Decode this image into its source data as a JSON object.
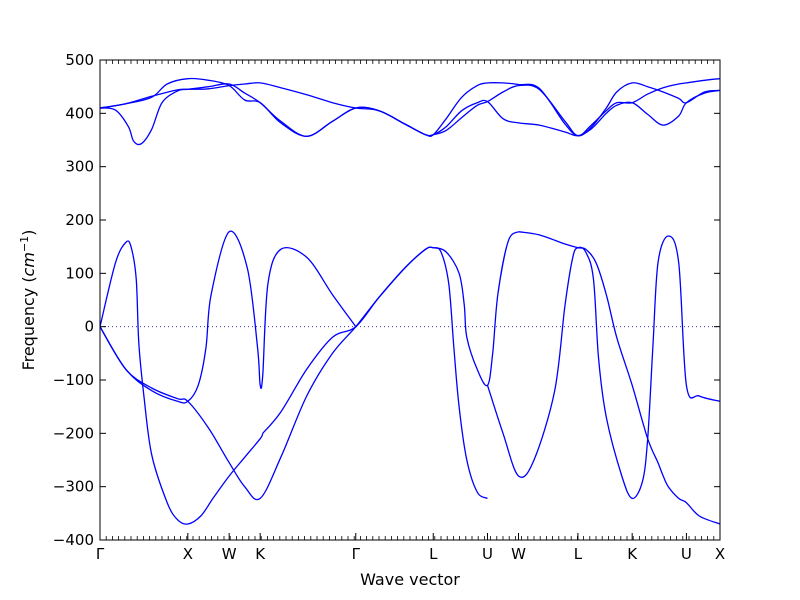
{
  "chart_data": {
    "type": "line",
    "title": "",
    "xlabel": "Wave vector",
    "ylabel_prefix": "Frequency (",
    "ylabel_unit_base": "cm",
    "ylabel_unit_exp": "−1",
    "ylabel_suffix": ")",
    "ylim": [
      -400,
      500
    ],
    "yticks": [
      -400,
      -300,
      -200,
      -100,
      0,
      100,
      200,
      300,
      400,
      500
    ],
    "xlim": [
      0,
      12
    ],
    "xticks": [
      {
        "x": 0,
        "label": "Γ"
      },
      {
        "x": 1.7,
        "label": "X"
      },
      {
        "x": 2.5,
        "label": "W"
      },
      {
        "x": 3.1,
        "label": "K"
      },
      {
        "x": 4.95,
        "label": "Γ"
      },
      {
        "x": 6.45,
        "label": "L"
      },
      {
        "x": 7.5,
        "label": "U"
      },
      {
        "x": 8.1,
        "label": "W"
      },
      {
        "x": 9.25,
        "label": "L"
      },
      {
        "x": 10.3,
        "label": "K"
      },
      {
        "x": 11.35,
        "label": "U"
      },
      {
        "x": 12,
        "label": "X"
      }
    ],
    "zero_line": true,
    "line_color": "#0000ff",
    "zero_line_color": "#3333aa",
    "series": [
      {
        "x": [
          0,
          0.3,
          0.55,
          0.65,
          0.8,
          1.0,
          1.2,
          1.5,
          1.7,
          2.1,
          2.5,
          2.8,
          3.1,
          3.5,
          4.0,
          4.5,
          4.95,
          5.4,
          5.9,
          6.3,
          6.45,
          6.7,
          7.0,
          7.3,
          7.5,
          7.8,
          8.1,
          8.5,
          9.0,
          9.25,
          9.5,
          9.8,
          10.0,
          10.3,
          10.6,
          10.9,
          11.2,
          11.35,
          11.7,
          12
        ],
        "y": [
          410,
          406,
          375,
          348,
          343,
          370,
          420,
          442,
          445,
          450,
          455,
          438,
          420,
          385,
          357,
          385,
          410,
          405,
          380,
          360,
          360,
          375,
          405,
          420,
          422,
          390,
          382,
          378,
          365,
          358,
          370,
          400,
          415,
          420,
          398,
          378,
          395,
          420,
          438,
          443
        ]
      },
      {
        "x": [
          0,
          0.5,
          1.0,
          1.5,
          1.7,
          2.1,
          2.5,
          2.8,
          3.1,
          3.5,
          4.0,
          4.5,
          4.95,
          5.4,
          5.9,
          6.3,
          6.45,
          6.7,
          7.0,
          7.3,
          7.5,
          7.8,
          8.1,
          8.5,
          9.0,
          9.25,
          9.5,
          9.8,
          10.0,
          10.3,
          10.6,
          10.9,
          11.2,
          11.35,
          11.7,
          12
        ],
        "y": [
          410,
          418,
          432,
          444,
          445,
          446,
          452,
          455,
          457,
          448,
          435,
          420,
          410,
          405,
          380,
          360,
          360,
          390,
          430,
          452,
          457,
          457,
          454,
          447,
          380,
          358,
          373,
          410,
          440,
          457,
          450,
          440,
          428,
          420,
          440,
          443
        ]
      },
      {
        "x": [
          0,
          0.5,
          1.0,
          1.3,
          1.7,
          2.1,
          2.5,
          2.8,
          3.1,
          3.5,
          4.0,
          4.5,
          4.95,
          5.4,
          5.9,
          6.3,
          6.45,
          6.7,
          7.0,
          7.3,
          7.5,
          7.8,
          8.1,
          8.5,
          9.0,
          9.25,
          9.5,
          9.8,
          10.0,
          10.3,
          10.6,
          10.9,
          11.2,
          11.35,
          11.7,
          12
        ],
        "y": [
          410,
          418,
          430,
          455,
          465,
          462,
          452,
          425,
          420,
          382,
          357,
          385,
          410,
          405,
          380,
          360,
          360,
          368,
          392,
          415,
          422,
          440,
          452,
          445,
          385,
          358,
          377,
          405,
          420,
          420,
          436,
          448,
          455,
          457,
          462,
          465
        ]
      },
      {
        "x": [
          0,
          0.3,
          0.5,
          0.6,
          0.7,
          0.75,
          0.85,
          1.0,
          1.3,
          1.5,
          1.7,
          1.95,
          2.2,
          2.5,
          2.8,
          3.1,
          3.15
        ],
        "y": [
          0,
          120,
          158,
          150,
          90,
          -30,
          -130,
          -240,
          -330,
          -362,
          -370,
          -355,
          -320,
          -280,
          -245,
          -210,
          -200
        ]
      },
      {
        "x": [
          0,
          0.5,
          1.0,
          1.5,
          1.7,
          1.9,
          2.05,
          2.15,
          2.5,
          2.85,
          3.05,
          3.1,
          3.15,
          3.25,
          3.5,
          4.0,
          4.5,
          4.95
        ],
        "y": [
          0,
          -80,
          -120,
          -140,
          -140,
          -110,
          -40,
          60,
          178,
          110,
          -40,
          -110,
          -90,
          80,
          145,
          130,
          60,
          0
        ]
      },
      {
        "x": [
          0,
          0.5,
          1.0,
          1.5,
          1.7,
          2.1,
          2.5,
          2.8,
          3.1,
          3.5,
          4.0,
          4.5,
          4.95,
          5.4,
          5.9,
          6.3,
          6.45,
          6.6,
          6.75,
          6.85,
          6.95,
          7.1,
          7.3,
          7.5
        ],
        "y": [
          0,
          -80,
          -115,
          -135,
          -140,
          -190,
          -255,
          -300,
          -322,
          -245,
          -130,
          -50,
          0,
          55,
          110,
          145,
          148,
          140,
          80,
          -40,
          -150,
          -250,
          -310,
          -322
        ]
      },
      {
        "x": [
          3.15,
          3.5,
          4.0,
          4.5,
          4.95,
          5.4,
          5.9,
          6.3,
          6.45,
          6.7,
          6.95,
          7.05,
          7.1,
          7.3,
          7.5,
          7.6,
          7.7,
          7.9,
          8.1
        ],
        "y": [
          -200,
          -160,
          -80,
          -20,
          0,
          55,
          110,
          145,
          148,
          140,
          100,
          40,
          -20,
          -80,
          -110,
          -50,
          60,
          160,
          178
        ]
      },
      {
        "x": [
          7.5,
          7.8,
          8.1,
          8.4,
          8.8,
          9.0,
          9.15,
          9.25,
          9.4,
          9.55,
          9.65,
          9.8,
          10.1,
          10.3,
          10.5,
          10.6,
          10.7,
          10.8,
          11.0,
          11.2,
          11.35,
          11.6,
          12
        ],
        "y": [
          -110,
          -200,
          -280,
          -250,
          -120,
          40,
          130,
          148,
          140,
          90,
          -60,
          -170,
          -280,
          -322,
          -290,
          -210,
          -40,
          120,
          170,
          120,
          -110,
          -130,
          -140
        ]
      },
      {
        "x": [
          8.1,
          8.5,
          9.0,
          9.25,
          9.4,
          9.6,
          9.8,
          10.0,
          10.3,
          10.6,
          10.8,
          10.9,
          11.0,
          11.2,
          11.35,
          11.6,
          12
        ],
        "y": [
          178,
          172,
          155,
          148,
          145,
          120,
          60,
          -20,
          -110,
          -210,
          -255,
          -280,
          -300,
          -322,
          -330,
          -355,
          -370
        ]
      }
    ]
  }
}
